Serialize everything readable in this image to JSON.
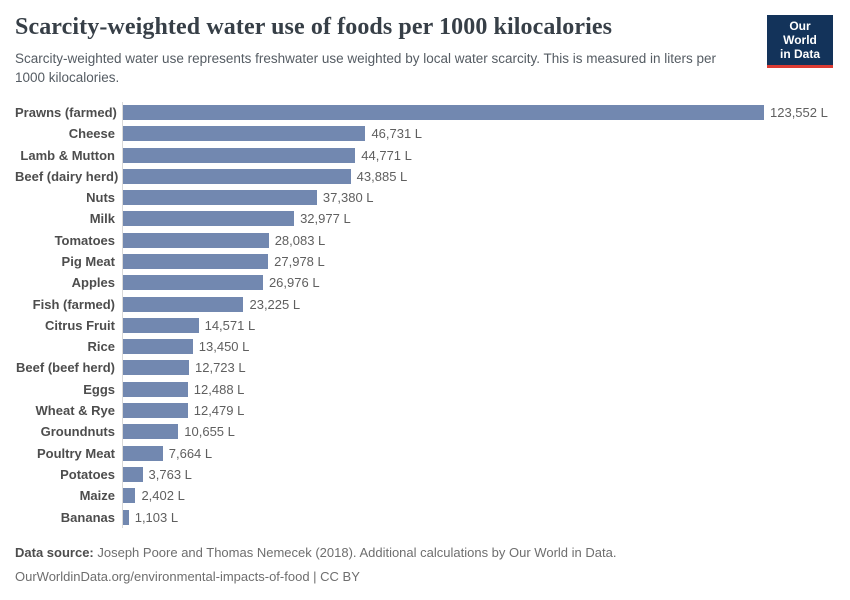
{
  "header": {
    "title": "Scarcity-weighted water use of foods per 1000 kilocalories",
    "subtitle": "Scarcity-weighted water use represents freshwater use weighted by local water scarcity. This is measured in liters per 1000 kilocalories."
  },
  "logo": {
    "line1": "Our World",
    "line2": "in Data",
    "bg_color": "#13335a",
    "stripe_color": "#dc3b33"
  },
  "chart_data": {
    "type": "bar",
    "orientation": "horizontal",
    "title": "Scarcity-weighted water use of foods per 1000 kilocalories",
    "xlabel": "",
    "ylabel": "",
    "unit": "L",
    "grid": false,
    "xlim": [
      0,
      123552
    ],
    "bar_color": "#7288b0",
    "axis_line_color": "#d9d9d9",
    "categories": [
      "Prawns (farmed)",
      "Cheese",
      "Lamb & Mutton",
      "Beef (dairy herd)",
      "Nuts",
      "Milk",
      "Tomatoes",
      "Pig Meat",
      "Apples",
      "Fish (farmed)",
      "Citrus Fruit",
      "Rice",
      "Beef (beef herd)",
      "Eggs",
      "Wheat & Rye",
      "Groundnuts",
      "Poultry Meat",
      "Potatoes",
      "Maize",
      "Bananas"
    ],
    "values": [
      123552,
      46731,
      44771,
      43885,
      37380,
      32977,
      28083,
      27978,
      26976,
      23225,
      14571,
      13450,
      12723,
      12488,
      12479,
      10655,
      7664,
      3763,
      2402,
      1103
    ],
    "value_labels": [
      "123,552 L",
      "46,731 L",
      "44,771 L",
      "43,885 L",
      "37,380 L",
      "32,977 L",
      "28,083 L",
      "27,978 L",
      "26,976 L",
      "23,225 L",
      "14,571 L",
      "13,450 L",
      "12,723 L",
      "12,488 L",
      "12,479 L",
      "10,655 L",
      "7,664 L",
      "3,763 L",
      "2,402 L",
      "1,103 L"
    ]
  },
  "footer": {
    "source_label": "Data source:",
    "source_text": " Joseph Poore and Thomas Nemecek (2018). Additional calculations by Our World in Data.",
    "url_line": "OurWorldinData.org/environmental-impacts-of-food | CC BY"
  }
}
